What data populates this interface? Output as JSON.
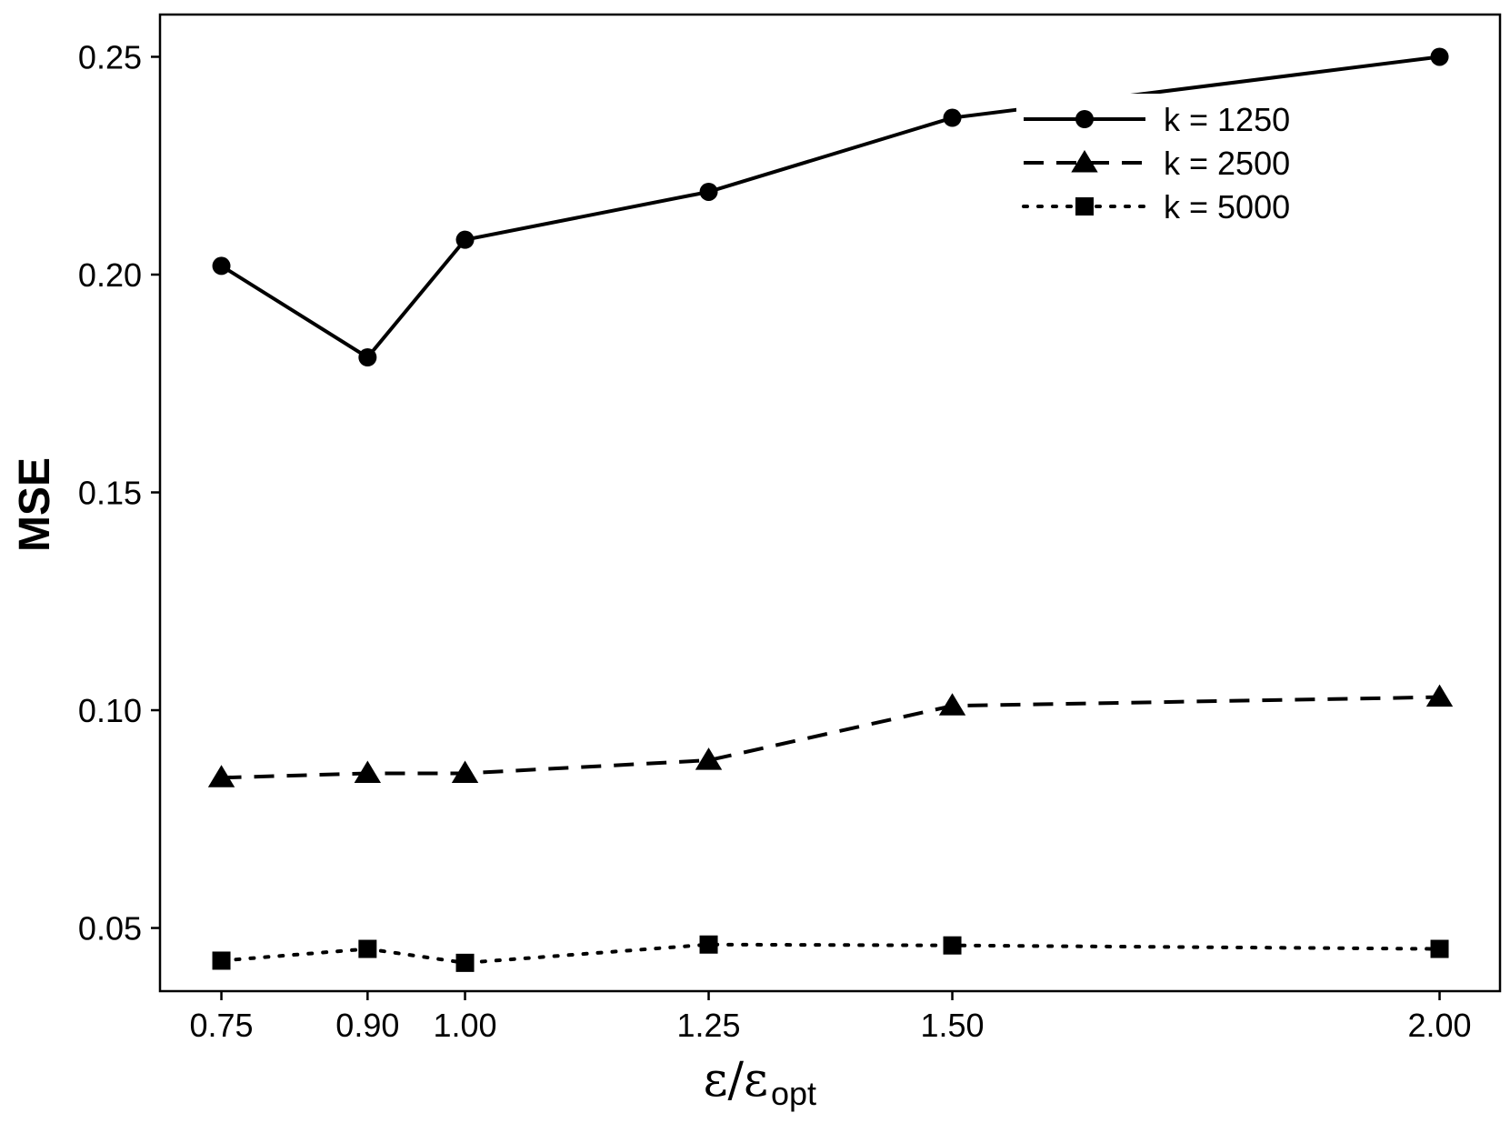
{
  "chart_data": {
    "type": "line",
    "title": "",
    "xlabel_main": "ε/ε",
    "xlabel_sub": "opt",
    "ylabel": "MSE",
    "x": [
      0.75,
      0.9,
      1.0,
      1.25,
      1.5,
      2.0
    ],
    "x_tick_labels": [
      "0.75",
      "0.90",
      "1.00",
      "1.25",
      "1.50",
      "2.00"
    ],
    "y_ticks": [
      0.05,
      0.1,
      0.15,
      0.2,
      0.25
    ],
    "y_tick_labels": [
      "0.05",
      "0.10",
      "0.15",
      "0.20",
      "0.25"
    ],
    "xlim": [
      0.687,
      2.062
    ],
    "ylim": [
      0.0355,
      0.2597
    ],
    "legend_position": "top-right",
    "grid": false,
    "series": [
      {
        "name": "k = 1250",
        "marker": "circle",
        "line": "solid",
        "values": [
          0.202,
          0.181,
          0.208,
          0.219,
          0.236,
          0.25
        ]
      },
      {
        "name": "k = 2500",
        "marker": "triangle",
        "line": "dashed",
        "values": [
          0.0845,
          0.0855,
          0.0855,
          0.0885,
          0.101,
          0.103
        ]
      },
      {
        "name": "k = 5000",
        "marker": "square",
        "line": "dotted",
        "values": [
          0.0425,
          0.0452,
          0.042,
          0.0462,
          0.046,
          0.0452
        ]
      }
    ],
    "colors": {
      "ink": "#000000",
      "background": "#ffffff"
    }
  }
}
